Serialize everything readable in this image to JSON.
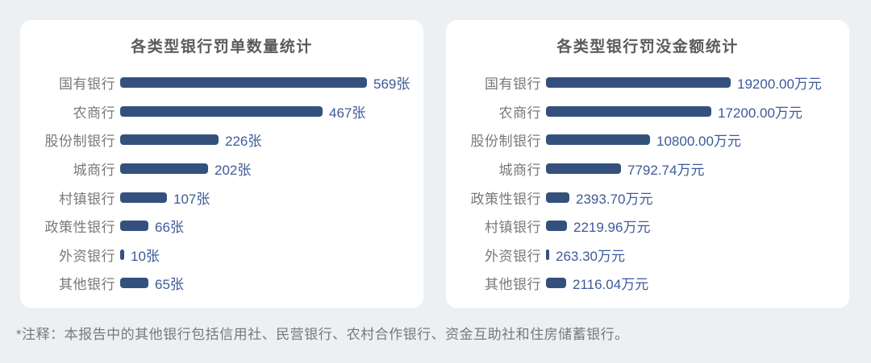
{
  "chart_data": [
    {
      "type": "bar",
      "orientation": "horizontal",
      "title": "各类型银行罚单数量统计",
      "categories": [
        "国有银行",
        "农商行",
        "股份制银行",
        "城商行",
        "村镇银行",
        "政策性银行",
        "外资银行",
        "其他银行"
      ],
      "values": [
        569,
        467,
        226,
        202,
        107,
        66,
        10,
        65
      ],
      "value_labels": [
        "569张",
        "467张",
        "226张",
        "202张",
        "107张",
        "66张",
        "10张",
        "65张"
      ],
      "unit": "张",
      "xlim": [
        0,
        600
      ],
      "grid": false,
      "legend": "none"
    },
    {
      "type": "bar",
      "orientation": "horizontal",
      "title": "各类型银行罚没金额统计",
      "categories": [
        "国有银行",
        "农商行",
        "股份制银行",
        "城商行",
        "政策性银行",
        "村镇银行",
        "外资银行",
        "其他银行"
      ],
      "values": [
        19200.0,
        17200.0,
        10800.0,
        7792.74,
        2393.7,
        2219.96,
        263.3,
        2116.04
      ],
      "value_labels": [
        "19200.00万元",
        "17200.00万元",
        "10800.00万元",
        "7792.74万元",
        "2393.70万元",
        "2219.96万元",
        "263.30万元",
        "2116.04万元"
      ],
      "unit": "万元",
      "xlim": [
        0,
        20000
      ],
      "grid": false,
      "legend": "none"
    }
  ],
  "note": "*注释：本报告中的其他银行包括信用社、民营银行、农村合作银行、资金互助社和住房储蓄银行。",
  "colors": {
    "bar": "#34517e",
    "value_text": "#3d5a99",
    "category_text": "#77797b",
    "title_text": "#595b5e",
    "note_text": "#77797b",
    "page_background": "#edf0f2",
    "card_background": "#ffffff"
  }
}
